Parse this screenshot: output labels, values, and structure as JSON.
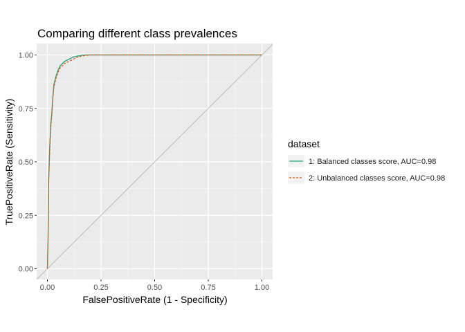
{
  "chart_data": {
    "type": "line",
    "title": "Comparing different class prevalences",
    "xlabel": "FalsePositiveRate (1 - Specificity)",
    "ylabel": "TruePositiveRate (Sensitivity)",
    "xlim": [
      0,
      1
    ],
    "ylim": [
      0,
      1
    ],
    "x_ticks": [
      "0.00",
      "0.25",
      "0.50",
      "0.75",
      "1.00"
    ],
    "y_ticks": [
      "0.00",
      "0.25",
      "0.50",
      "0.75",
      "1.00"
    ],
    "grid": true,
    "legend_position": "right",
    "legend_title": "dataset",
    "reference_line": {
      "x": [
        0,
        1
      ],
      "y": [
        0,
        1
      ],
      "color": "#bfbfbf"
    },
    "series": [
      {
        "name": "1: Balanced classes score, AUC=0.98",
        "color": "#1b9e77",
        "dash": "solid",
        "x": [
          0,
          0.003,
          0.006,
          0.01,
          0.015,
          0.02,
          0.025,
          0.03,
          0.035,
          0.04,
          0.05,
          0.06,
          0.07,
          0.08,
          0.09,
          0.1,
          0.12,
          0.14,
          0.16,
          0.18,
          0.2,
          0.25,
          0.3,
          0.5,
          0.75,
          1.0
        ],
        "y": [
          0,
          0.15,
          0.42,
          0.55,
          0.67,
          0.72,
          0.8,
          0.86,
          0.88,
          0.9,
          0.93,
          0.95,
          0.96,
          0.97,
          0.975,
          0.98,
          0.99,
          0.995,
          0.998,
          1.0,
          1.0,
          1.0,
          1.0,
          1.0,
          1.0,
          1.0
        ]
      },
      {
        "name": "2: Unbalanced classes score, AUC=0.98",
        "color": "#e6550d",
        "dash": "dashed",
        "x": [
          0,
          0.003,
          0.006,
          0.01,
          0.015,
          0.02,
          0.025,
          0.03,
          0.035,
          0.04,
          0.05,
          0.06,
          0.07,
          0.08,
          0.09,
          0.1,
          0.12,
          0.14,
          0.16,
          0.18,
          0.2,
          0.25,
          0.3,
          0.5,
          0.75,
          1.0
        ],
        "y": [
          0,
          0.14,
          0.4,
          0.53,
          0.65,
          0.71,
          0.79,
          0.85,
          0.87,
          0.89,
          0.92,
          0.94,
          0.95,
          0.96,
          0.965,
          0.97,
          0.98,
          0.99,
          0.995,
          0.998,
          1.0,
          1.0,
          1.0,
          1.0,
          1.0,
          1.0
        ]
      }
    ]
  }
}
